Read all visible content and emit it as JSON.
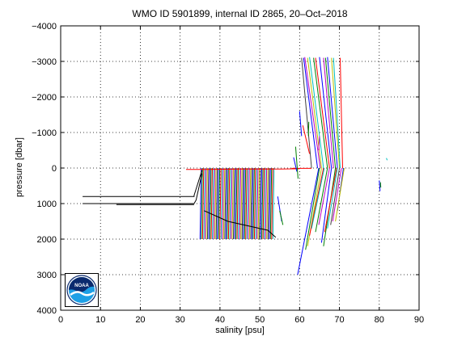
{
  "chart_data": {
    "type": "line",
    "title": "WMO ID 5901899, internal ID 2865, 20–Oct–2018",
    "xlabel": "salinity [psu]",
    "ylabel": "pressure [dbar]",
    "xlim": [
      0,
      90
    ],
    "ylim": [
      -4000,
      4000
    ],
    "y_reversed": true,
    "grid": "dotted",
    "legend": "none",
    "x_ticks": [
      "0",
      "10",
      "20",
      "30",
      "40",
      "50",
      "60",
      "70",
      "80",
      "90"
    ],
    "y_ticks": [
      "−4000",
      "−3000",
      "−2000",
      "−1000",
      "0",
      "1000",
      "2000",
      "3000",
      "4000"
    ],
    "series_colors": [
      "#0000ff",
      "#008000",
      "#ff0000",
      "#00bfbf",
      "#bf00bf",
      "#bfbf00",
      "#404040"
    ],
    "dense_profile_band": {
      "profile_count": 60,
      "salinity_start_first": 35.3,
      "salinity_step": 0.31,
      "pressure_top": 0,
      "pressure_bottom": 2000,
      "salinity_change_surface_to_depth": -0.3
    },
    "series": [
      {
        "color": "#000000",
        "x": [
          5.5,
          33.5,
          33.5,
          35.5
        ],
        "y": [
          800,
          800,
          770,
          60
        ]
      },
      {
        "color": "#000000",
        "x": [
          5.5,
          33.5,
          34,
          35.5
        ],
        "y": [
          1000,
          1000,
          900,
          150
        ]
      },
      {
        "color": "#000000",
        "x": [
          14,
          33.5
        ],
        "y": [
          1030,
          1030
        ]
      },
      {
        "color": "#ff0000",
        "x": [
          31.5,
          36,
          45,
          55,
          60
        ],
        "y": [
          40,
          40,
          30,
          30,
          20
        ]
      },
      {
        "color": "#ff0000",
        "x": [
          58,
          63
        ],
        "y": [
          10,
          10
        ]
      },
      {
        "color": "#000000",
        "x": [
          36,
          42,
          52,
          54
        ],
        "y": [
          1200,
          1500,
          1750,
          1950
        ]
      },
      {
        "color": "#0000ff",
        "x": [
          58.5,
          59.3
        ],
        "y": [
          -300,
          100
        ]
      },
      {
        "color": "#008000",
        "x": [
          59,
          59.6
        ],
        "y": [
          -600,
          300
        ]
      },
      {
        "color": "#0000ff",
        "x": [
          54.5,
          55.5
        ],
        "y": [
          800,
          1500
        ]
      },
      {
        "color": "#008000",
        "x": [
          55,
          55.8
        ],
        "y": [
          1200,
          1600
        ]
      },
      {
        "color": "#0000ff",
        "x": [
          61,
          64.5
        ],
        "y": [
          -3100,
          0
        ]
      },
      {
        "color": "#bf00bf",
        "x": [
          61.3,
          65.2
        ],
        "y": [
          -3120,
          0
        ]
      },
      {
        "color": "#bfbf00",
        "x": [
          62,
          65.5
        ],
        "y": [
          -3100,
          0
        ]
      },
      {
        "color": "#00bfbf",
        "x": [
          62.5,
          66
        ],
        "y": [
          -3120,
          0
        ]
      },
      {
        "color": "#008000",
        "x": [
          63.5,
          67
        ],
        "y": [
          -3100,
          0
        ]
      },
      {
        "color": "#ff0000",
        "x": [
          64,
          67.5
        ],
        "y": [
          -3100,
          0
        ]
      },
      {
        "color": "#0000ff",
        "x": [
          65,
          68
        ],
        "y": [
          -3120,
          0
        ]
      },
      {
        "color": "#bf00bf",
        "x": [
          66,
          68.5
        ],
        "y": [
          -3100,
          0
        ]
      },
      {
        "color": "#008000",
        "x": [
          66.5,
          69
        ],
        "y": [
          -3100,
          0
        ]
      },
      {
        "color": "#0000ff",
        "x": [
          67,
          69.5
        ],
        "y": [
          -3120,
          0
        ]
      },
      {
        "color": "#bfbf00",
        "x": [
          68,
          70
        ],
        "y": [
          -3100,
          0
        ]
      },
      {
        "color": "#00bfbf",
        "x": [
          68.5,
          70.2
        ],
        "y": [
          -3100,
          0
        ]
      },
      {
        "color": "#ff0000",
        "x": [
          70.2,
          70.5,
          70.8
        ],
        "y": [
          -3100,
          -1500,
          0
        ]
      },
      {
        "color": "#404040",
        "x": [
          60.5,
          63
        ],
        "y": [
          -3100,
          0
        ]
      },
      {
        "color": "#ff0000",
        "x": [
          60.8,
          62.5
        ],
        "y": [
          -1200,
          -400
        ]
      },
      {
        "color": "#008000",
        "x": [
          62.3,
          62.2
        ],
        "y": [
          -1300,
          -900
        ]
      },
      {
        "color": "#0000ff",
        "x": [
          60,
          60.5
        ],
        "y": [
          -1600,
          -900
        ]
      },
      {
        "color": "#bf00bf",
        "x": [
          65,
          64.8
        ],
        "y": [
          -900,
          -500
        ]
      },
      {
        "color": "#0000ff",
        "x": [
          64.8,
          59.5
        ],
        "y": [
          0,
          3000
        ]
      },
      {
        "color": "#008000",
        "x": [
          65,
          61.5
        ],
        "y": [
          0,
          2300
        ]
      },
      {
        "color": "#bfbf00",
        "x": [
          65.5,
          62
        ],
        "y": [
          0,
          2200
        ]
      },
      {
        "color": "#ff0000",
        "x": [
          66,
          62.5
        ],
        "y": [
          0,
          1900
        ]
      },
      {
        "color": "#00bfbf",
        "x": [
          66.2,
          63
        ],
        "y": [
          0,
          1700
        ]
      },
      {
        "color": "#008000",
        "x": [
          67,
          64
        ],
        "y": [
          0,
          1800
        ]
      },
      {
        "color": "#bf00bf",
        "x": [
          67.5,
          64.8
        ],
        "y": [
          0,
          1600
        ]
      },
      {
        "color": "#0000ff",
        "x": [
          68,
          65.5
        ],
        "y": [
          0,
          2100
        ]
      },
      {
        "color": "#008000",
        "x": [
          69,
          66
        ],
        "y": [
          0,
          2200
        ]
      },
      {
        "color": "#ff0000",
        "x": [
          69.3,
          66.3
        ],
        "y": [
          0,
          1800
        ]
      },
      {
        "color": "#00bfbf",
        "x": [
          69.5,
          67
        ],
        "y": [
          0,
          1700
        ]
      },
      {
        "color": "#404040",
        "x": [
          70,
          67.8
        ],
        "y": [
          0,
          1600
        ]
      },
      {
        "color": "#bf00bf",
        "x": [
          70.5,
          68.3
        ],
        "y": [
          0,
          1500
        ]
      },
      {
        "color": "#0000ff",
        "x": [
          71,
          69.5
        ],
        "y": [
          0,
          1200
        ]
      },
      {
        "color": "#bfbf00",
        "x": [
          71.2,
          69
        ],
        "y": [
          0,
          1500
        ]
      },
      {
        "color": "#00bfbf",
        "x": [
          81.8,
          82
        ],
        "y": [
          -280,
          -220
        ]
      },
      {
        "color": "#0000ff",
        "x": [
          80,
          80.2
        ],
        "y": [
          350,
          650
        ]
      },
      {
        "color": "#008000",
        "x": [
          80.3,
          80.4
        ],
        "y": [
          400,
          550
        ]
      }
    ]
  },
  "noaa_logo": {
    "text": "NOAA",
    "outer_color": "#ffffff",
    "top_color": "#0b2a6e",
    "bottom_color": "#1ea0e6"
  }
}
